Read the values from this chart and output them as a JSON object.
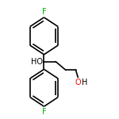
{
  "bg_color": "#ffffff",
  "bond_color": "#000000",
  "atom_color_O": "#ff0000",
  "atom_color_F": "#00aa00",
  "line_width": 1.2,
  "figsize": [
    1.5,
    1.5
  ],
  "dpi": 100,
  "HO_label": "HO",
  "F_top_label": "F",
  "F_bot_label": "F"
}
